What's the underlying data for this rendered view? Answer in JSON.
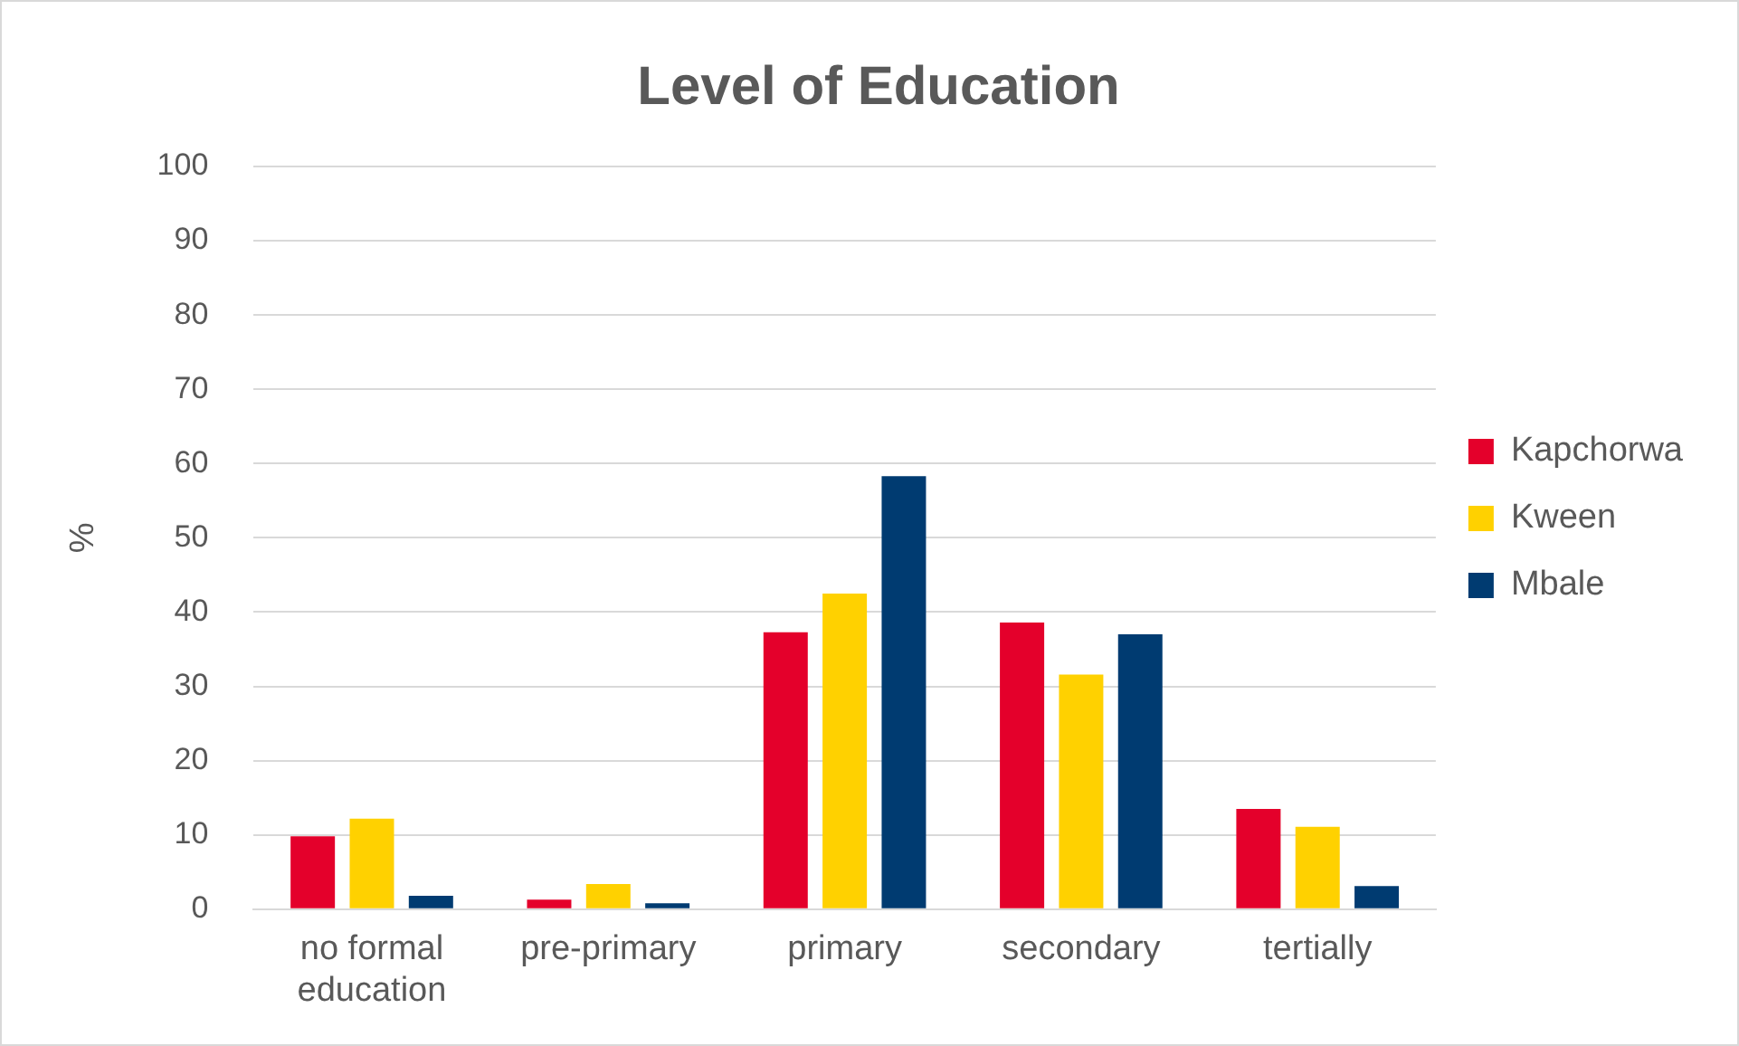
{
  "chart_data": {
    "type": "bar",
    "title": "Level of Education",
    "ylabel": "%",
    "categories": [
      "no formal education",
      "pre-primary",
      "primary",
      "secondary",
      "tertially"
    ],
    "series": [
      {
        "name": "Kapchorwa",
        "color": "#e4002b",
        "values": [
          9.8,
          1.3,
          37.3,
          38.6,
          13.5
        ]
      },
      {
        "name": "Kween",
        "color": "#ffd100",
        "values": [
          12.2,
          3.4,
          42.5,
          31.6,
          11.1
        ]
      },
      {
        "name": "Mbale",
        "color": "#003b71",
        "values": [
          1.8,
          0.8,
          58.3,
          37.0,
          3.1
        ]
      }
    ],
    "ylim": [
      0,
      100
    ],
    "yticks": [
      0,
      10,
      20,
      30,
      40,
      50,
      60,
      70,
      80,
      90,
      100
    ],
    "grid": "y",
    "legend": "right"
  }
}
